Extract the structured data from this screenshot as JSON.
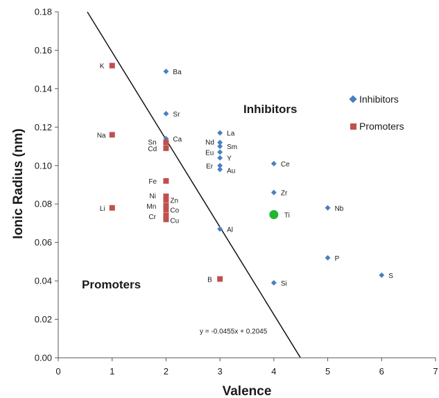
{
  "chart_data": {
    "type": "scatter",
    "xlabel": "Valence",
    "ylabel": "Ionic Radius (nm)",
    "xlim": [
      0,
      7
    ],
    "ylim": [
      0,
      0.18
    ],
    "xticks": [
      "0",
      "1",
      "2",
      "3",
      "4",
      "5",
      "6",
      "7"
    ],
    "yticks": [
      "0.00",
      "0.02",
      "0.04",
      "0.06",
      "0.08",
      "0.10",
      "0.12",
      "0.14",
      "0.16",
      "0.18"
    ],
    "grid": false,
    "legend_position": "right",
    "series": [
      {
        "name": "Inhibitors",
        "marker": "diamond",
        "color": "#4a7fc1",
        "points": [
          {
            "label": "Ba",
            "x": 2,
            "y": 0.149
          },
          {
            "label": "Sr",
            "x": 2,
            "y": 0.127
          },
          {
            "label": "Ca",
            "x": 2,
            "y": 0.114
          },
          {
            "label": "La",
            "x": 3,
            "y": 0.117
          },
          {
            "label": "Nd",
            "x": 3,
            "y": 0.112
          },
          {
            "label": "Sm",
            "x": 3,
            "y": 0.11
          },
          {
            "label": "Eu",
            "x": 3,
            "y": 0.107
          },
          {
            "label": "Y",
            "x": 3,
            "y": 0.104
          },
          {
            "label": "Er",
            "x": 3,
            "y": 0.1
          },
          {
            "label": "Au",
            "x": 3,
            "y": 0.098
          },
          {
            "label": "Al",
            "x": 3,
            "y": 0.067
          },
          {
            "label": "Ce",
            "x": 4,
            "y": 0.101
          },
          {
            "label": "Zr",
            "x": 4,
            "y": 0.086
          },
          {
            "label": "Si",
            "x": 4,
            "y": 0.039
          },
          {
            "label": "Nb",
            "x": 5,
            "y": 0.078
          },
          {
            "label": "P",
            "x": 5,
            "y": 0.052
          },
          {
            "label": "S",
            "x": 6,
            "y": 0.043
          }
        ]
      },
      {
        "name": "Promoters",
        "marker": "square",
        "color": "#c0504d",
        "points": [
          {
            "label": "K",
            "x": 1,
            "y": 0.152
          },
          {
            "label": "Na",
            "x": 1,
            "y": 0.116
          },
          {
            "label": "Li",
            "x": 1,
            "y": 0.078
          },
          {
            "label": "Sn",
            "x": 2,
            "y": 0.112
          },
          {
            "label": "Cd",
            "x": 2,
            "y": 0.109
          },
          {
            "label": "Fe",
            "x": 2,
            "y": 0.092
          },
          {
            "label": "Ni",
            "x": 2,
            "y": 0.084
          },
          {
            "label": "Zn",
            "x": 2,
            "y": 0.082
          },
          {
            "label": "Mn",
            "x": 2,
            "y": 0.079
          },
          {
            "label": "Co",
            "x": 2,
            "y": 0.077
          },
          {
            "label": "Cr",
            "x": 2,
            "y": 0.074
          },
          {
            "label": "Cu",
            "x": 2,
            "y": 0.072
          },
          {
            "label": "B",
            "x": 3,
            "y": 0.041
          }
        ]
      },
      {
        "name": "Ti",
        "marker": "circle",
        "color": "#22b534",
        "points": [
          {
            "label": "Ti",
            "x": 4,
            "y": 0.0745
          }
        ]
      }
    ],
    "fit_line": {
      "label": "y = -0.0455x + 0.2045",
      "slope": -0.0455,
      "intercept": 0.2045,
      "x_range": [
        0.54,
        4.49
      ],
      "color": "#111111"
    },
    "annotations": {
      "inhibitors_region": "Inhibitors",
      "promoters_region": "Promoters"
    },
    "legend": [
      {
        "name": "Inhibitors",
        "marker": "diamond",
        "color": "#4a7fc1"
      },
      {
        "name": "Promoters",
        "marker": "square",
        "color": "#c0504d"
      }
    ]
  }
}
